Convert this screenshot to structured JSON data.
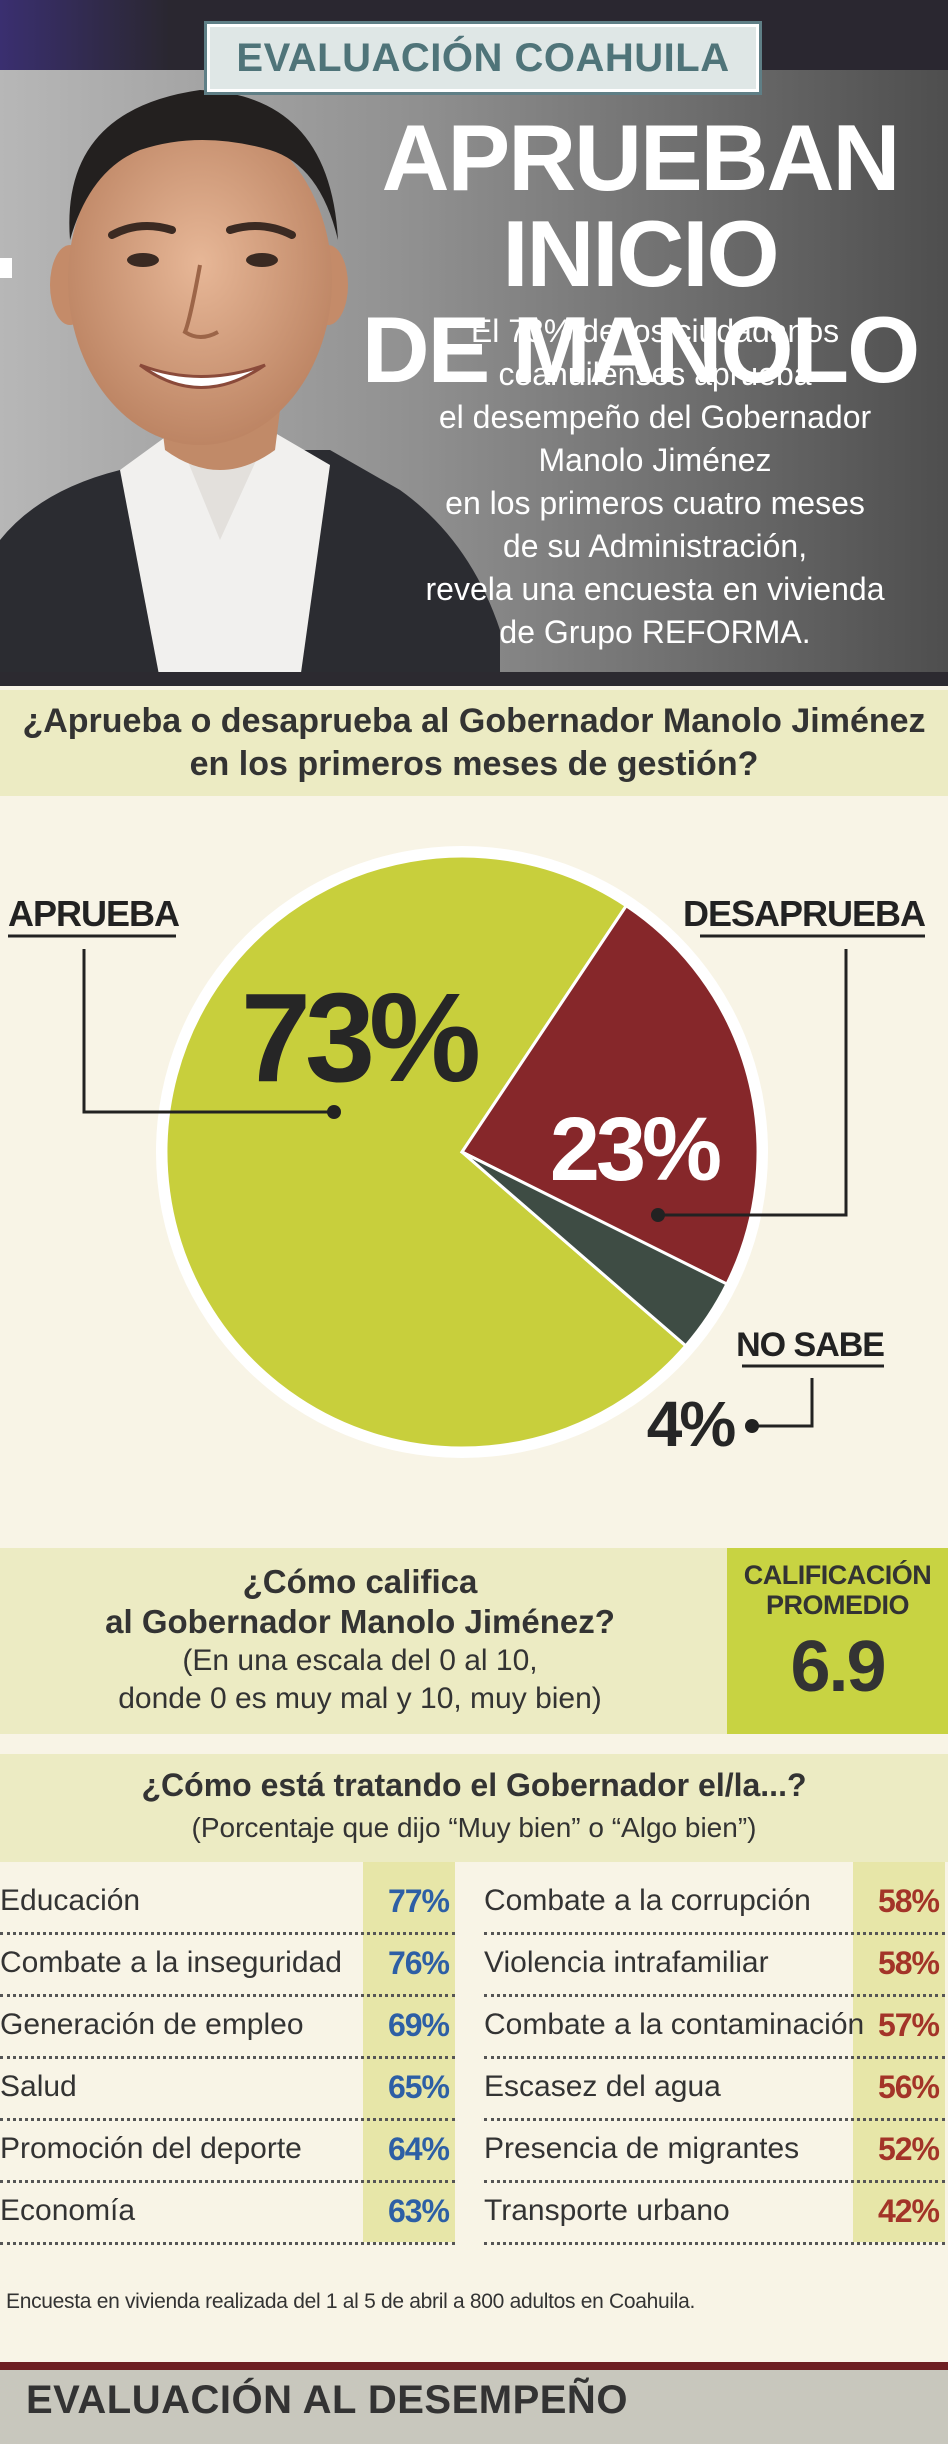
{
  "header": {
    "kicker": "EVALUACIÓN COAHUILA",
    "headline_line1": "APRUEBAN INICIO",
    "headline_line2": "DE MANOLO",
    "intro_lines": [
      "El 73% de los ciudadanos",
      "coahuilenses aprueba",
      "el desempeño del Gobernador",
      "Manolo Jiménez",
      "en los primeros cuatro meses",
      "de su Administración,",
      "revela una encuesta en vivienda",
      "de Grupo REFORMA."
    ]
  },
  "colors": {
    "approve": "#c8cf3c",
    "disapprove": "#86272a",
    "unknown": "#3e4c44",
    "band": "#ecebc3",
    "rating_box": "#c8d342",
    "blue_value": "#2d5fa5",
    "red_value": "#a33428"
  },
  "question1": {
    "line1": "¿Aprueba o desaprueba al Gobernador Manolo Jiménez",
    "line2": "en los primeros meses de gestión?"
  },
  "chart_data": {
    "type": "pie",
    "title": "¿Aprueba o desaprueba al Gobernador Manolo Jiménez en los primeros meses de gestión?",
    "slices": [
      {
        "label": "APRUEBA",
        "value": 73,
        "display": "73%",
        "color": "#c8cf3c"
      },
      {
        "label": "DESAPRUEBA",
        "value": 23,
        "display": "23%",
        "color": "#86272a"
      },
      {
        "label": "NO SABE",
        "value": 4,
        "display": "4%",
        "color": "#3e4c44"
      }
    ]
  },
  "rating": {
    "title_line1": "¿Cómo califica",
    "title_line2": "al Gobernador Manolo Jiménez?",
    "sub_line1": "(En una escala del 0 al 10,",
    "sub_line2": "donde 0 es muy mal y 10, muy bien)",
    "label_line1": "CALIFICACIÓN",
    "label_line2": "PROMEDIO",
    "value": "6.9"
  },
  "issues": {
    "title": "¿Cómo está tratando el Gobernador el/la...?",
    "subtitle": "(Porcentaje que dijo “Muy bien” o “Algo bien”)",
    "left": [
      {
        "label": "Educación",
        "value": "77%"
      },
      {
        "label": "Combate a la inseguridad",
        "value": "76%"
      },
      {
        "label": "Generación de empleo",
        "value": "69%"
      },
      {
        "label": "Salud",
        "value": "65%"
      },
      {
        "label": "Promoción del deporte",
        "value": "64%"
      },
      {
        "label": "Economía",
        "value": "63%"
      }
    ],
    "right": [
      {
        "label": "Combate a la corrupción",
        "value": "58%"
      },
      {
        "label": "Violencia intrafamiliar",
        "value": "58%"
      },
      {
        "label": "Combate a la contaminación",
        "value": "57%"
      },
      {
        "label": "Escasez del agua",
        "value": "56%"
      },
      {
        "label": "Presencia de migrantes",
        "value": "52%"
      },
      {
        "label": "Transporte urbano",
        "value": "42%"
      }
    ]
  },
  "footnote": "Encuesta en vivienda realizada del 1 al 5 de abril a 800 adultos en Coahuila.",
  "footer": {
    "title": "EVALUACIÓN AL DESEMPEÑO"
  }
}
